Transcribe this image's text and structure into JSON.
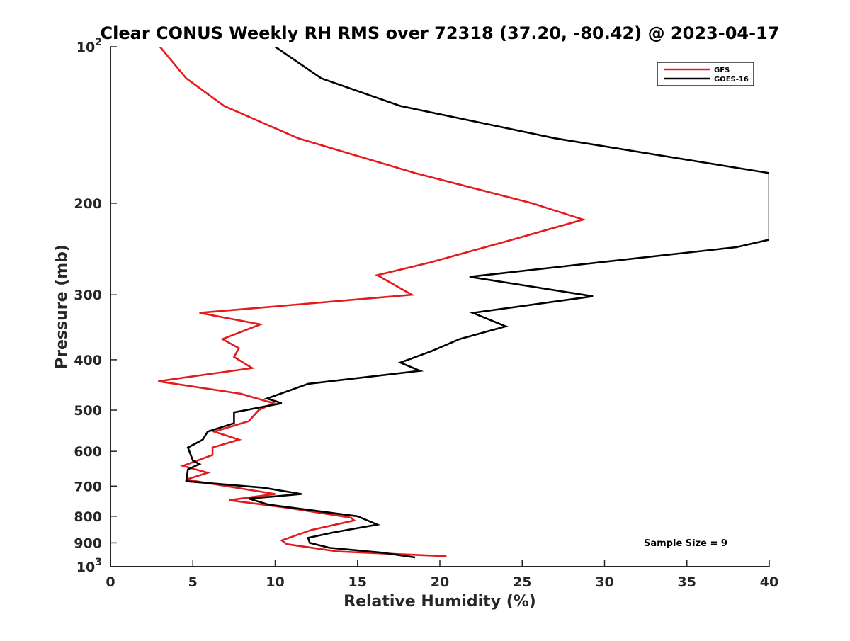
{
  "chart_data": {
    "type": "line",
    "title": "Clear CONUS Weekly RH RMS over 72318 (37.20, -80.42) @ 2023-04-17",
    "xlabel": "Relative Humidity (%)",
    "ylabel": "Pressure (mb)",
    "xlim": [
      0,
      40
    ],
    "ylim": [
      100,
      1000
    ],
    "y_scale": "log",
    "y_reversed": true,
    "x_ticks": [
      0,
      5,
      10,
      15,
      20,
      25,
      30,
      35,
      40
    ],
    "x_tick_labels": [
      "0",
      "5",
      "10",
      "15",
      "20",
      "25",
      "30",
      "35",
      "40"
    ],
    "y_ticks": [
      100,
      200,
      300,
      400,
      500,
      600,
      700,
      800,
      900,
      1000
    ],
    "y_tick_labels": [
      {
        "base": "10",
        "exp": "2"
      },
      {
        "base": "200",
        "exp": ""
      },
      {
        "base": "300",
        "exp": ""
      },
      {
        "base": "400",
        "exp": ""
      },
      {
        "base": "500",
        "exp": ""
      },
      {
        "base": "600",
        "exp": ""
      },
      {
        "base": "700",
        "exp": ""
      },
      {
        "base": "800",
        "exp": ""
      },
      {
        "base": "900",
        "exp": ""
      },
      {
        "base": "10",
        "exp": "3"
      }
    ],
    "grid": false,
    "legend_position": "top-right",
    "annotation": "Sample Size = 9",
    "series": [
      {
        "name": "GFS",
        "color": "#e41a1c",
        "points": [
          [
            3.0,
            100
          ],
          [
            4.6,
            115
          ],
          [
            6.9,
            130
          ],
          [
            11.4,
            150
          ],
          [
            18.5,
            175
          ],
          [
            25.6,
            200
          ],
          [
            28.7,
            215
          ],
          [
            24.4,
            235
          ],
          [
            19.4,
            260
          ],
          [
            16.2,
            275
          ],
          [
            18.3,
            300
          ],
          [
            5.4,
            325
          ],
          [
            9.1,
            342
          ],
          [
            6.8,
            365
          ],
          [
            7.8,
            380
          ],
          [
            7.5,
            395
          ],
          [
            8.6,
            415
          ],
          [
            2.9,
            440
          ],
          [
            7.9,
            465
          ],
          [
            9.9,
            485
          ],
          [
            9.0,
            500
          ],
          [
            8.4,
            525
          ],
          [
            6.3,
            550
          ],
          [
            7.8,
            570
          ],
          [
            6.2,
            590
          ],
          [
            6.2,
            610
          ],
          [
            4.4,
            640
          ],
          [
            5.9,
            660
          ],
          [
            4.6,
            680
          ],
          [
            10.0,
            725
          ],
          [
            7.2,
            745
          ],
          [
            10.7,
            770
          ],
          [
            14.6,
            805
          ],
          [
            14.8,
            815
          ],
          [
            12.2,
            850
          ],
          [
            10.4,
            890
          ],
          [
            10.7,
            905
          ],
          [
            13.8,
            935
          ],
          [
            20.4,
            955
          ]
        ]
      },
      {
        "name": "GOES-16",
        "color": "#000000",
        "points": [
          [
            10.0,
            100
          ],
          [
            12.8,
            115
          ],
          [
            17.6,
            130
          ],
          [
            27.0,
            150
          ],
          [
            40.0,
            175
          ],
          [
            40.0,
            235
          ],
          [
            38.0,
            243
          ],
          [
            21.8,
            277
          ],
          [
            29.3,
            302
          ],
          [
            22.0,
            325
          ],
          [
            24.0,
            345
          ],
          [
            21.2,
            365
          ],
          [
            19.5,
            385
          ],
          [
            17.6,
            405
          ],
          [
            18.8,
            420
          ],
          [
            12.0,
            445
          ],
          [
            9.5,
            475
          ],
          [
            10.4,
            485
          ],
          [
            7.5,
            505
          ],
          [
            7.5,
            530
          ],
          [
            5.9,
            550
          ],
          [
            5.6,
            570
          ],
          [
            4.7,
            590
          ],
          [
            5.0,
            625
          ],
          [
            5.4,
            635
          ],
          [
            4.7,
            650
          ],
          [
            4.6,
            685
          ],
          [
            9.3,
            705
          ],
          [
            11.6,
            725
          ],
          [
            8.4,
            740
          ],
          [
            9.6,
            760
          ],
          [
            15.0,
            800
          ],
          [
            16.2,
            830
          ],
          [
            13.5,
            860
          ],
          [
            12.0,
            880
          ],
          [
            12.1,
            900
          ],
          [
            13.3,
            920
          ],
          [
            16.5,
            940
          ],
          [
            18.5,
            960
          ]
        ]
      }
    ]
  }
}
